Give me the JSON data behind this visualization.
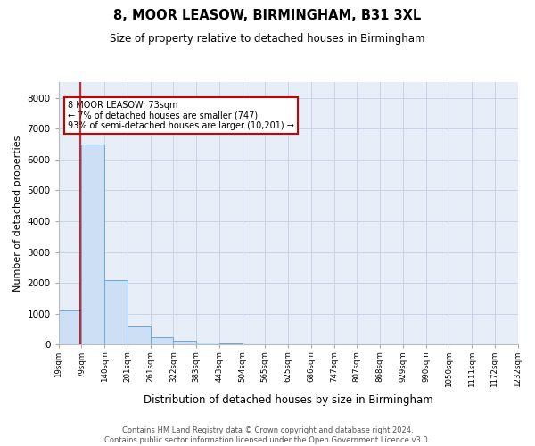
{
  "title": "8, MOOR LEASOW, BIRMINGHAM, B31 3XL",
  "subtitle": "Size of property relative to detached houses in Birmingham",
  "xlabel": "Distribution of detached houses by size in Birmingham",
  "ylabel": "Number of detached properties",
  "bar_color": "#ccdff5",
  "bar_edge_color": "#6aaad4",
  "grid_color": "#c8d4e8",
  "background_color": "#e8eef8",
  "property_line_color": "#cc0000",
  "annotation_box_color": "#cc0000",
  "property_size_bin": 0.93,
  "annotation_text_line1": "8 MOOR LEASOW: 73sqm",
  "annotation_text_line2": "← 7% of detached houses are smaller (747)",
  "annotation_text_line3": "93% of semi-detached houses are larger (10,201) →",
  "ylim": [
    0,
    8500
  ],
  "yticks": [
    0,
    1000,
    2000,
    3000,
    4000,
    5000,
    6000,
    7000,
    8000
  ],
  "bin_labels": [
    "19sqm",
    "79sqm",
    "140sqm",
    "201sqm",
    "261sqm",
    "322sqm",
    "383sqm",
    "443sqm",
    "504sqm",
    "565sqm",
    "625sqm",
    "686sqm",
    "747sqm",
    "807sqm",
    "868sqm",
    "929sqm",
    "990sqm",
    "1050sqm",
    "1111sqm",
    "1172sqm",
    "1232sqm"
  ],
  "bar_heights": [
    1100,
    6500,
    2100,
    580,
    240,
    120,
    70,
    30,
    20,
    10,
    5,
    0,
    0,
    0,
    0,
    0,
    0,
    0,
    0,
    0
  ],
  "num_bins": 20,
  "footer_line1": "Contains HM Land Registry data © Crown copyright and database right 2024.",
  "footer_line2": "Contains public sector information licensed under the Open Government Licence v3.0."
}
